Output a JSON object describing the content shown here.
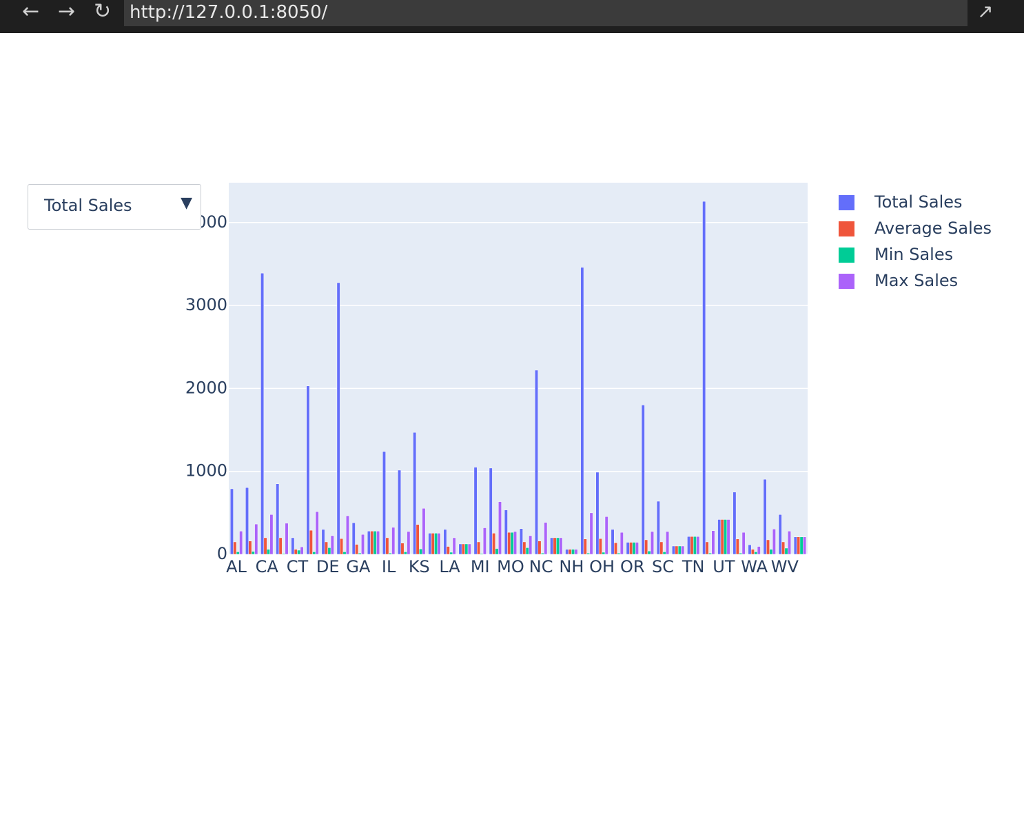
{
  "browser": {
    "url": "http://127.0.0.1:8050/"
  },
  "dropdown": {
    "value": "Total Sales"
  },
  "chart_data": {
    "type": "bar",
    "categories": [
      "AL",
      null,
      "CA",
      null,
      "CT",
      null,
      "DE",
      null,
      "GA",
      null,
      "IL",
      null,
      "KS",
      null,
      "LA",
      null,
      "MI",
      null,
      "MO",
      null,
      "NC",
      null,
      "NH",
      null,
      "OH",
      null,
      "OR",
      null,
      "SC",
      null,
      "TN",
      null,
      "UT",
      null,
      "WA",
      null,
      "WV",
      null
    ],
    "series": [
      {
        "name": "Total Sales",
        "color": "#636efa",
        "values": [
          790,
          805,
          3390,
          850,
          200,
          2030,
          300,
          3275,
          380,
          280,
          1240,
          1015,
          1470,
          255,
          300,
          125,
          1050,
          1040,
          535,
          310,
          2220,
          200,
          60,
          3460,
          990,
          300,
          145,
          1800,
          640,
          100,
          215,
          4255,
          420,
          750,
          115,
          905,
          480,
          210
        ]
      },
      {
        "name": "Average Sales",
        "color": "#ef553b",
        "values": [
          150,
          160,
          200,
          200,
          60,
          290,
          150,
          190,
          120,
          280,
          200,
          135,
          360,
          255,
          95,
          125,
          150,
          255,
          265,
          150,
          160,
          200,
          60,
          185,
          190,
          140,
          145,
          175,
          150,
          100,
          215,
          150,
          420,
          185,
          60,
          175,
          150,
          210
        ]
      },
      {
        "name": "Min Sales",
        "color": "#00cc96",
        "values": [
          30,
          35,
          60,
          10,
          50,
          30,
          80,
          30,
          15,
          280,
          15,
          30,
          65,
          255,
          25,
          125,
          10,
          70,
          265,
          80,
          15,
          200,
          60,
          15,
          25,
          15,
          145,
          40,
          30,
          100,
          215,
          15,
          420,
          15,
          30,
          60,
          75,
          210
        ]
      },
      {
        "name": "Max Sales",
        "color": "#ab63fa",
        "values": [
          280,
          365,
          480,
          375,
          90,
          515,
          225,
          465,
          240,
          280,
          325,
          275,
          555,
          255,
          200,
          125,
          320,
          635,
          275,
          225,
          385,
          200,
          60,
          500,
          455,
          265,
          145,
          275,
          275,
          100,
          215,
          285,
          420,
          265,
          95,
          305,
          280,
          210
        ]
      }
    ],
    "ylim": [
      0,
      4480
    ],
    "yticks": [
      0,
      1000,
      2000,
      3000,
      4000
    ],
    "grid": true,
    "legend": "right"
  }
}
